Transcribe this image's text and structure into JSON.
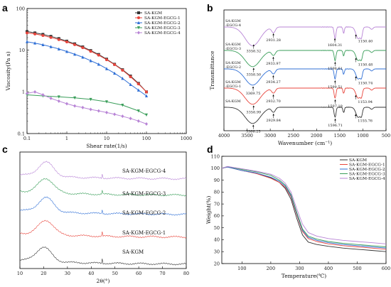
{
  "colors": {
    "black": "#333333",
    "red": "#e8453c",
    "blue": "#2f6fd6",
    "green": "#3a9e5a",
    "purple": "#b884d6"
  },
  "chart_data": [
    {
      "panel": "a",
      "type": "line",
      "xlabel": "Shear rate(1/s)",
      "ylabel": "Viscosity(Pa s)",
      "xscale": "log",
      "yscale": "log",
      "xlim": [
        0.1,
        1000
      ],
      "ylim": [
        0.1,
        100
      ],
      "xticks": [
        "0.1",
        "1",
        "10",
        "100",
        "1000"
      ],
      "yticks": [
        "0.1",
        "1",
        "10",
        "100"
      ],
      "legend_position": "top-right",
      "series": [
        {
          "name": "SA-KGM",
          "color": "#333333",
          "marker": "square",
          "x": [
            0.1,
            0.158,
            0.251,
            0.398,
            0.631,
            1,
            1.58,
            2.51,
            3.98,
            6.31,
            10,
            15.8,
            25.1,
            39.8,
            63.1,
            100
          ],
          "y": [
            28,
            26,
            24,
            21.5,
            19,
            16.5,
            14.2,
            12,
            9.8,
            7.9,
            6.1,
            4.6,
            3.4,
            2.4,
            1.6,
            1.0
          ]
        },
        {
          "name": "SA-KGM-EGCG-1",
          "color": "#e8453c",
          "marker": "circle",
          "x": [
            0.1,
            0.158,
            0.251,
            0.398,
            0.631,
            1,
            1.58,
            2.51,
            3.98,
            6.31,
            10,
            15.8,
            25.1,
            39.8,
            63.1,
            100
          ],
          "y": [
            26,
            24.5,
            22.5,
            20.2,
            18,
            15.8,
            13.6,
            11.5,
            9.4,
            7.6,
            5.9,
            4.5,
            3.3,
            2.3,
            1.55,
            1.0
          ]
        },
        {
          "name": "SA-KGM-EGCG-2",
          "color": "#2f6fd6",
          "marker": "triangle-up",
          "x": [
            0.1,
            0.158,
            0.251,
            0.398,
            0.631,
            1,
            1.58,
            2.51,
            3.98,
            6.31,
            10,
            15.8,
            25.1,
            39.8,
            63.1,
            100
          ],
          "y": [
            16,
            14.8,
            13.5,
            12.1,
            10.7,
            9.3,
            8.0,
            6.8,
            5.6,
            4.6,
            3.6,
            2.8,
            2.1,
            1.5,
            1.1,
            0.8
          ]
        },
        {
          "name": "SA-KGM-EGCG-3",
          "color": "#3a9e5a",
          "marker": "triangle-down",
          "x": [
            0.1,
            0.251,
            0.631,
            1.58,
            3.98,
            10,
            25.1,
            63.1,
            100
          ],
          "y": [
            0.85,
            0.8,
            0.76,
            0.72,
            0.66,
            0.58,
            0.48,
            0.35,
            0.28
          ]
        },
        {
          "name": "SA-KGM-EGCG-4",
          "color": "#b884d6",
          "marker": "diamond",
          "x": [
            0.1,
            0.158,
            0.251,
            0.398,
            0.631,
            1,
            1.58,
            2.51,
            3.98,
            6.31,
            10,
            15.8,
            25.1,
            39.8,
            63.1,
            100
          ],
          "y": [
            0.92,
            1.0,
            0.85,
            0.7,
            0.6,
            0.52,
            0.46,
            0.42,
            0.38,
            0.35,
            0.32,
            0.29,
            0.26,
            0.23,
            0.2,
            0.17
          ]
        }
      ]
    },
    {
      "panel": "b",
      "type": "line",
      "xlabel": "Wavenumber (cm⁻¹)",
      "ylabel": "Transmittance",
      "xlim": [
        4000,
        500
      ],
      "xticks": [
        "4000",
        "3500",
        "3000",
        "2500",
        "2000",
        "1500",
        "1000",
        "500"
      ],
      "series": [
        {
          "name": "SA-KGM",
          "color": "#333333",
          "offset": 0,
          "label": [
            "SA-KGM"
          ],
          "annotations": [
            {
              "x": 3366.25,
              "text": "3366.25"
            },
            {
              "x": 2929.84,
              "text": "2929.84"
            },
            {
              "x": 1596.71,
              "text": "1596.71"
            },
            {
              "x": 1155.76,
              "text": "1155.76"
            }
          ]
        },
        {
          "name": "SA-KGM-EGCG-1",
          "color": "#e8453c",
          "offset": 1,
          "label": [
            "SA-KGM",
            "-EGCG-1"
          ],
          "annotations": [
            {
              "x": 3358.99,
              "text": "3358.99"
            },
            {
              "x": 2932.7,
              "text": "2932.70"
            },
            {
              "x": 1597.19,
              "text": "1597.19"
            },
            {
              "x": 1153.94,
              "text": "1153.94"
            }
          ]
        },
        {
          "name": "SA-KGM-EGCG-2",
          "color": "#2f6fd6",
          "offset": 2,
          "label": [
            "SA-KGM",
            "-EGCG-2"
          ],
          "annotations": [
            {
              "x": 3369.75,
              "text": "3369.75"
            },
            {
              "x": 2934.27,
              "text": "2934.27"
            },
            {
              "x": 1599.51,
              "text": "1599.51"
            },
            {
              "x": 1150.74,
              "text": "1150.74"
            }
          ]
        },
        {
          "name": "SA-KGM-EGCG-3",
          "color": "#3a9e5a",
          "offset": 3,
          "label": [
            "SA-KGM",
            "-EGCG-3"
          ],
          "annotations": [
            {
              "x": 3358.5,
              "text": "3358.50"
            },
            {
              "x": 2933.97,
              "text": "2933.97"
            },
            {
              "x": 1598.61,
              "text": "1598.61"
            },
            {
              "x": 1150.48,
              "text": "1150.48"
            }
          ]
        },
        {
          "name": "SA-KGM-EGCG-4",
          "color": "#b884d6",
          "offset": 4,
          "label": [
            "SA-KGM",
            "-EGCG-4"
          ],
          "annotations": [
            {
              "x": 3358.32,
              "text": "3358.32"
            },
            {
              "x": 2931.28,
              "text": "2931.28"
            },
            {
              "x": 1604.31,
              "text": "1604.31"
            },
            {
              "x": 1150.4,
              "text": "1150.40"
            }
          ]
        }
      ]
    },
    {
      "panel": "c",
      "type": "line",
      "xlabel": "2θ(°)",
      "xlim": [
        10,
        80
      ],
      "xticks": [
        "10",
        "20",
        "30",
        "40",
        "50",
        "60",
        "70",
        "80"
      ],
      "series": [
        {
          "name": "SA-KGM",
          "color": "#333333",
          "offset": 0,
          "peak": 20
        },
        {
          "name": "SA-KGM-EGCG-1",
          "color": "#e8453c",
          "offset": 1,
          "peak": 21
        },
        {
          "name": "SA-KGM-EGCG-2",
          "color": "#2f6fd6",
          "offset": 2,
          "peak": 21
        },
        {
          "name": "SA-KGM-EGCG-3",
          "color": "#3a9e5a",
          "offset": 3,
          "peak": 21
        },
        {
          "name": "SA-KGM-EGCG-4",
          "color": "#b884d6",
          "offset": 4,
          "peak": 21
        }
      ]
    },
    {
      "panel": "d",
      "type": "line",
      "xlabel": "Temperature(℃)",
      "ylabel": "Weight(%)",
      "xlim": [
        30,
        600
      ],
      "ylim": [
        20,
        110
      ],
      "xticks": [
        "100",
        "200",
        "300",
        "400",
        "500",
        "600"
      ],
      "yticks": [
        "20",
        "30",
        "40",
        "50",
        "60",
        "70",
        "80",
        "90",
        "100",
        "110"
      ],
      "legend_position": "top-right",
      "series": [
        {
          "name": "SA-KGM",
          "color": "#333333",
          "x": [
            30,
            50,
            100,
            150,
            200,
            230,
            250,
            270,
            290,
            310,
            330,
            360,
            400,
            450,
            500,
            550,
            600
          ],
          "y": [
            100,
            101,
            98,
            96,
            92,
            88,
            83,
            74,
            58,
            44,
            38,
            36,
            34.5,
            33,
            32,
            31,
            30
          ]
        },
        {
          "name": "SA-KGM-EGCG-1",
          "color": "#e8453c",
          "x": [
            30,
            50,
            100,
            150,
            200,
            230,
            250,
            270,
            290,
            310,
            330,
            360,
            400,
            450,
            500,
            550,
            600
          ],
          "y": [
            100,
            101,
            98,
            95.5,
            91.5,
            88,
            84,
            76,
            61,
            47,
            41,
            38.5,
            36.5,
            35,
            34,
            33,
            32
          ]
        },
        {
          "name": "SA-KGM-EGCG-2",
          "color": "#2f6fd6",
          "x": [
            30,
            50,
            100,
            150,
            200,
            230,
            250,
            270,
            290,
            310,
            330,
            360,
            400,
            450,
            500,
            550,
            600
          ],
          "y": [
            100,
            101,
            98,
            96,
            92.5,
            89,
            85,
            77,
            62,
            48,
            42,
            39.5,
            37.5,
            36,
            35,
            34,
            33
          ]
        },
        {
          "name": "SA-KGM-EGCG-3",
          "color": "#3a9e5a",
          "x": [
            30,
            50,
            100,
            150,
            200,
            230,
            250,
            270,
            290,
            310,
            330,
            360,
            400,
            450,
            500,
            550,
            600
          ],
          "y": [
            100,
            101.5,
            99,
            97,
            94,
            90,
            86,
            78,
            63,
            49,
            43,
            40.5,
            38.5,
            37,
            36,
            35,
            34
          ]
        },
        {
          "name": "SA-KGM-EGCG-4",
          "color": "#b884d6",
          "x": [
            30,
            50,
            100,
            150,
            200,
            230,
            250,
            270,
            290,
            310,
            330,
            360,
            400,
            450,
            500,
            550,
            600
          ],
          "y": [
            100,
            101.5,
            99.5,
            97.5,
            95,
            91.5,
            87.5,
            80,
            66,
            53,
            46,
            43,
            41,
            39.5,
            38.5,
            37.5,
            36.5
          ]
        }
      ]
    }
  ]
}
